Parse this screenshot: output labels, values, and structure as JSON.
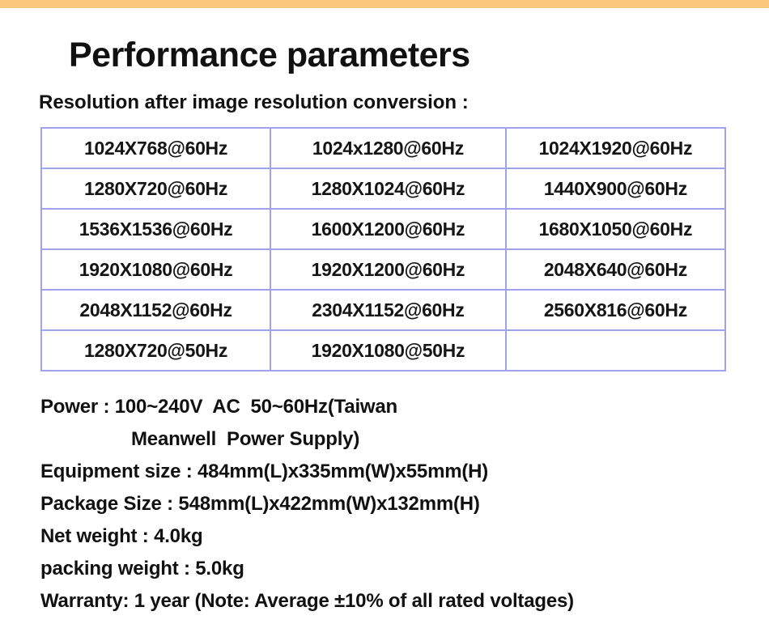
{
  "page": {
    "title": "Performance parameters",
    "subtitle": "Resolution after image resolution conversion :"
  },
  "colors": {
    "top_bar": "#fbc77c",
    "table_border": "#a2a2ea",
    "text": "#111111"
  },
  "table": {
    "rows": [
      [
        "1024X768@60Hz",
        "1024x1280@60Hz",
        "1024X1920@60Hz"
      ],
      [
        "1280X720@60Hz",
        "1280X1024@60Hz",
        "1440X900@60Hz"
      ],
      [
        "1536X1536@60Hz",
        "1600X1200@60Hz",
        "1680X1050@60Hz"
      ],
      [
        "1920X1080@60Hz",
        "1920X1200@60Hz",
        "2048X640@60Hz"
      ],
      [
        "2048X1152@60Hz",
        "2304X1152@60Hz",
        "2560X816@60Hz"
      ],
      [
        "1280X720@50Hz",
        "1920X1080@50Hz",
        ""
      ]
    ]
  },
  "specs": {
    "lines": [
      {
        "text": "Power : 100~240V  AC  50~60Hz(Taiwan"
      },
      {
        "text": "Meanwell  Power Supply)"
      },
      {
        "text": "Equipment size : 484mm(L)x335mm(W)x55mm(H)"
      },
      {
        "text": "Package Size : 548mm(L)x422mm(W)x132mm(H)"
      },
      {
        "text": "Net weight : 4.0kg"
      },
      {
        "text": "packing weight : 5.0kg"
      },
      {
        "text": "Warranty: 1 year (Note: Average ±10% of all rated voltages)"
      }
    ]
  }
}
